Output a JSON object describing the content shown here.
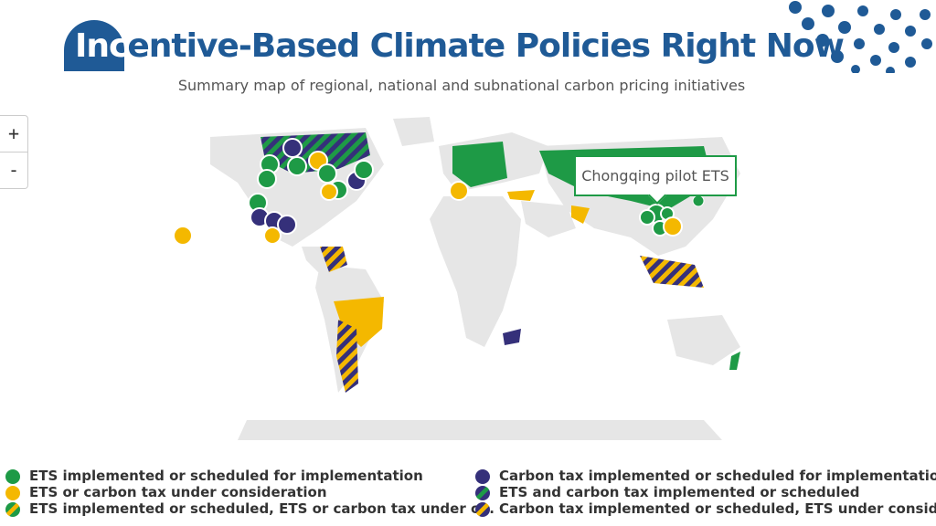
{
  "header": {
    "title_highlight": "Inc",
    "title_rest": "entive-Based Climate Policies Right Now",
    "subtitle": "Summary map of regional, national and subnational carbon pricing initiatives"
  },
  "zoom": {
    "in_label": "+",
    "out_label": "-"
  },
  "tooltip": {
    "text": "Chongqing pilot ETS"
  },
  "colors": {
    "green": "#1e9a46",
    "yellow": "#f4b800",
    "purple": "#35307a",
    "land": "#e6e6e6",
    "brand": "#1f5a96"
  },
  "legend": [
    {
      "label": "ETS implemented or scheduled for implementation",
      "swatch": "green"
    },
    {
      "label": "ETS or carbon tax under consideration",
      "swatch": "yellow"
    },
    {
      "label": "ETS implemented or scheduled, ETS or carbon tax under c...",
      "swatch": "green-yellow"
    },
    {
      "label": "Carbon tax implemented or scheduled for implementation",
      "swatch": "purple"
    },
    {
      "label": "ETS and carbon tax implemented or scheduled",
      "swatch": "green-purple"
    },
    {
      "label": "Carbon tax implemented or scheduled, ETS under consider...",
      "swatch": "purple-yellow"
    }
  ]
}
